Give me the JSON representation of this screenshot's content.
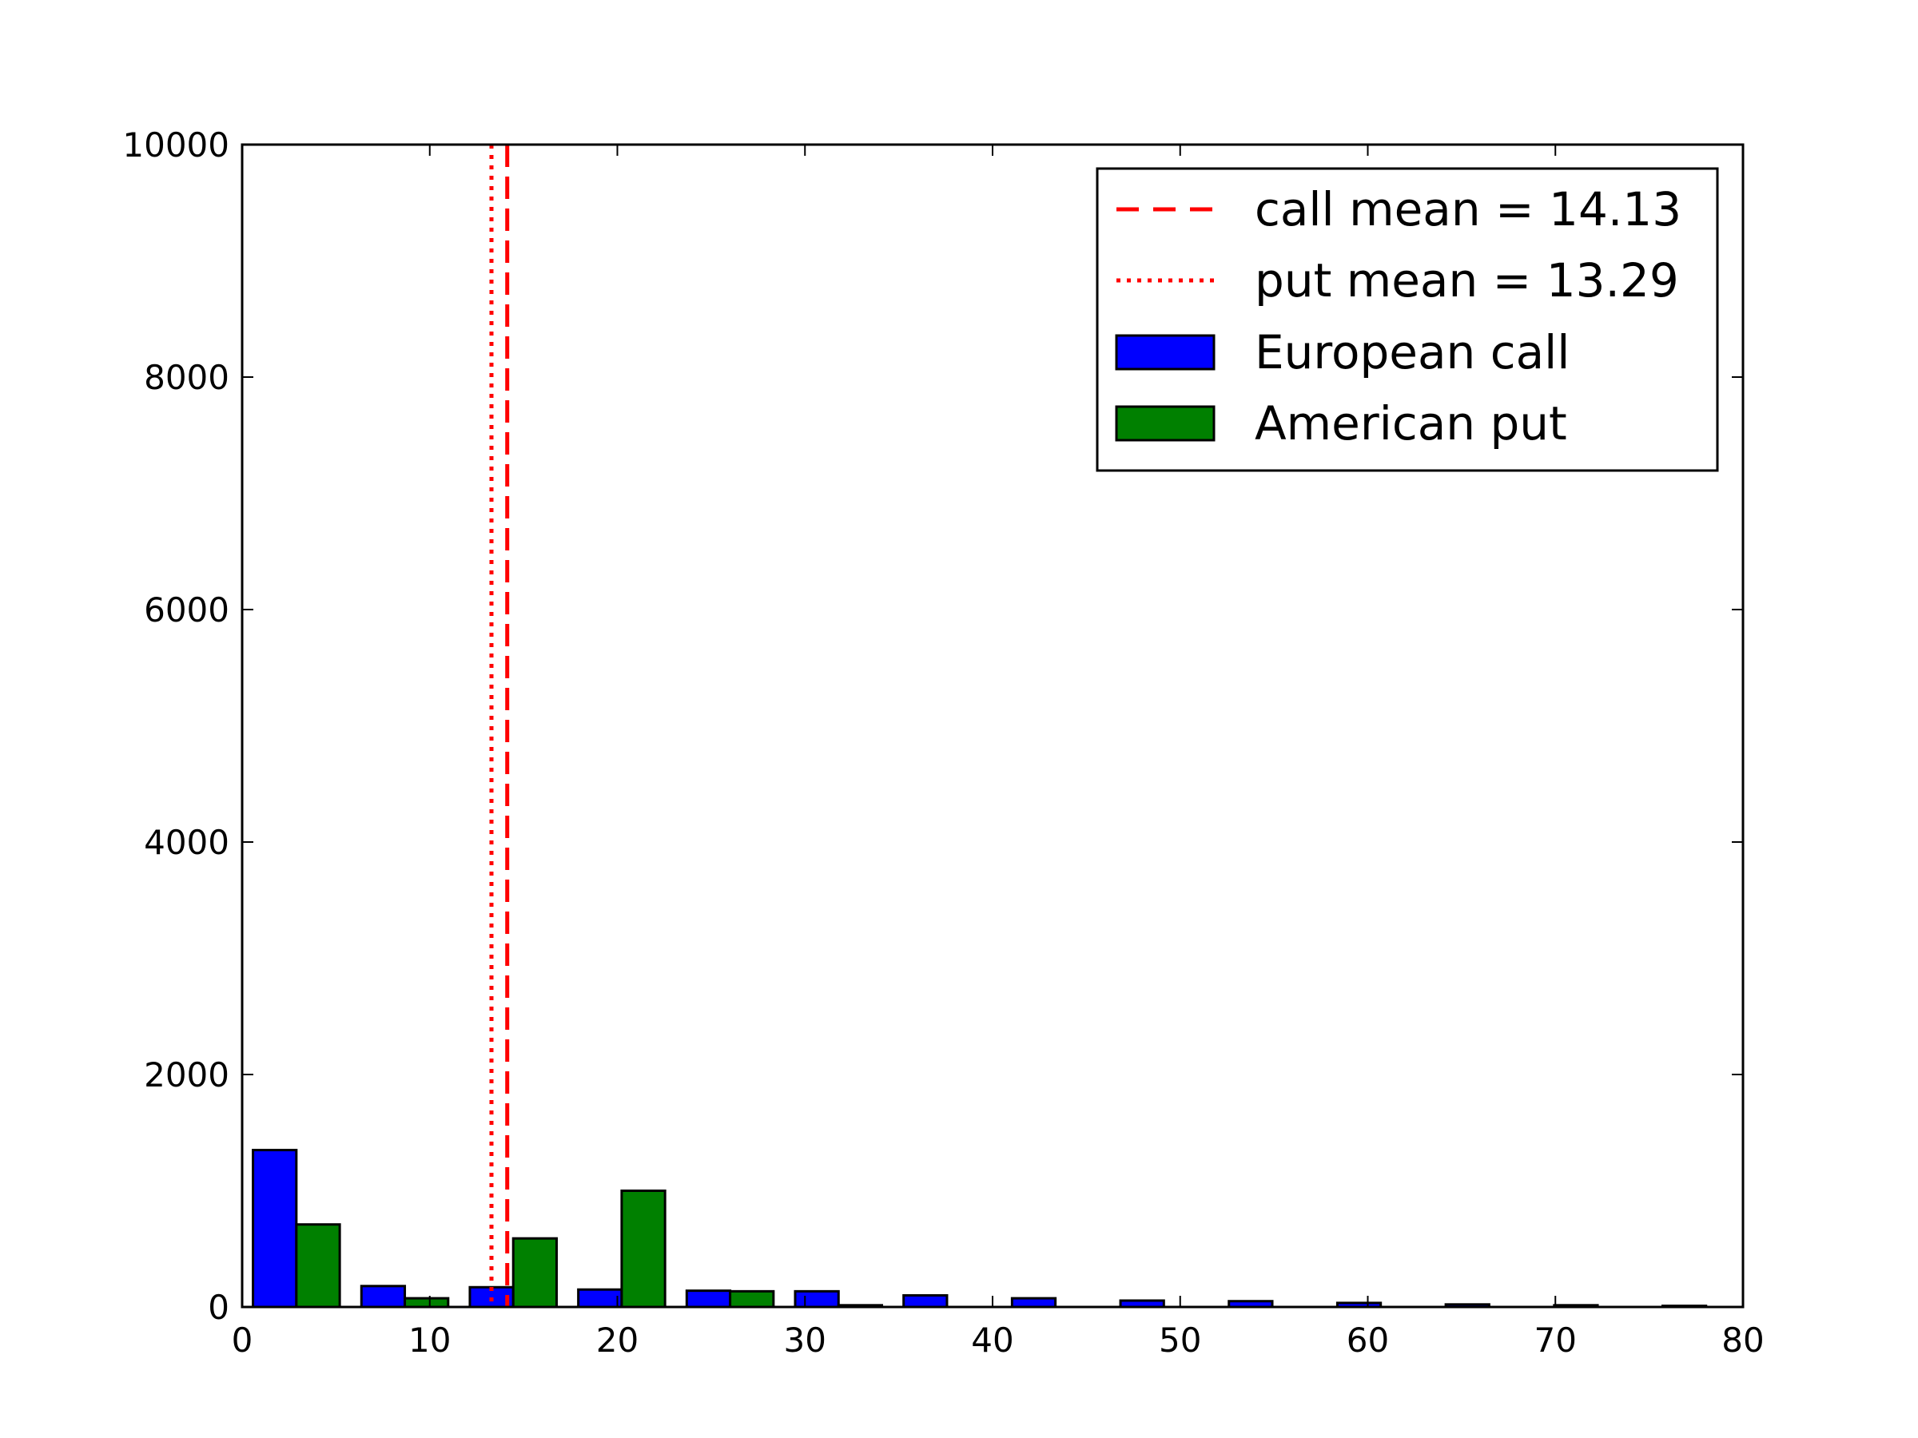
{
  "chart_data": {
    "type": "bar",
    "xlim": [
      0,
      80
    ],
    "ylim": [
      0,
      10000
    ],
    "xticks": [
      0,
      10,
      20,
      30,
      40,
      50,
      60,
      70,
      80
    ],
    "yticks": [
      0,
      2000,
      4000,
      6000,
      8000,
      10000
    ],
    "grid": false,
    "legend_position": "top-right",
    "title": "",
    "xlabel": "",
    "ylabel": "",
    "bin_edges": [
      0,
      5.78,
      11.56,
      17.34,
      23.12,
      28.9,
      34.68,
      40.46,
      46.24,
      52.02,
      57.8,
      63.58,
      69.36,
      75.14,
      80.92
    ],
    "series": [
      {
        "name": "European call",
        "color": "#0000ff",
        "values": [
          1350,
          180,
          170,
          150,
          140,
          135,
          100,
          75,
          55,
          50,
          35,
          22,
          15,
          10
        ]
      },
      {
        "name": "American put",
        "color": "#008000",
        "values": [
          710,
          75,
          590,
          1000,
          135,
          15,
          0,
          0,
          0,
          0,
          0,
          0,
          0,
          0
        ]
      }
    ],
    "reference_lines": [
      {
        "name": "call mean = 14.13",
        "x": 14.13,
        "color": "#ff0000",
        "style": "dashed"
      },
      {
        "name": "put mean = 13.29",
        "x": 13.29,
        "color": "#ff0000",
        "style": "dotted"
      }
    ]
  }
}
